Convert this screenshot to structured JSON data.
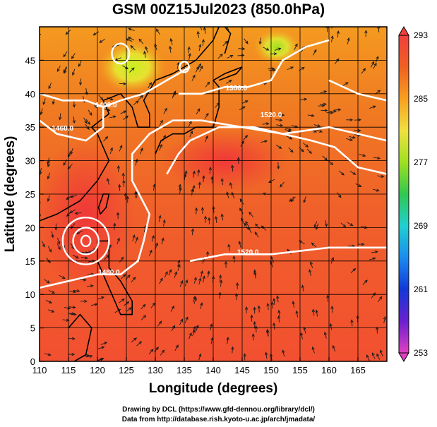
{
  "chart_data": {
    "type": "heatmap",
    "title": "GSM 00Z15Jul2023 (850.0hPa)",
    "xlabel": "Longitude (degrees)",
    "ylabel": "Latitude  (degrees)",
    "xlim": [
      110,
      170
    ],
    "ylim": [
      0,
      50
    ],
    "x_ticks": [
      110,
      115,
      120,
      125,
      130,
      135,
      140,
      145,
      150,
      155,
      160,
      165
    ],
    "y_ticks": [
      0,
      5,
      10,
      15,
      20,
      25,
      30,
      35,
      40,
      45
    ],
    "colorbar": {
      "min": 253,
      "max": 293,
      "ticks": [
        253,
        261,
        269,
        277,
        285,
        293
      ],
      "colors": [
        "#e040c0",
        "#6a1fd0",
        "#1238d8",
        "#1a8cf0",
        "#20d0d0",
        "#30c850",
        "#a0e020",
        "#f0e040",
        "#f8a020",
        "#f06020",
        "#f04040"
      ]
    },
    "contours": [
      {
        "label": "1400.0",
        "lon": 121.5,
        "lat": 38.0
      },
      {
        "label": "1460.0",
        "lon": 114.0,
        "lat": 34.5
      },
      {
        "label": "1380.0",
        "lon": 144.0,
        "lat": 40.5
      },
      {
        "label": "1520.0",
        "lon": 150.0,
        "lat": 36.5
      },
      {
        "label": "1520.0",
        "lon": 146.0,
        "lat": 16.0
      },
      {
        "label": "1480.0",
        "lon": 122.0,
        "lat": 13.0
      }
    ],
    "grid": true
  },
  "credits": {
    "line1": "Drawing by DCL (https://www.gfd-dennou.org/library/dcl/)",
    "line2": "Data from http://database.rish.kyoto-u.ac.jp/arch/jmadata/"
  }
}
